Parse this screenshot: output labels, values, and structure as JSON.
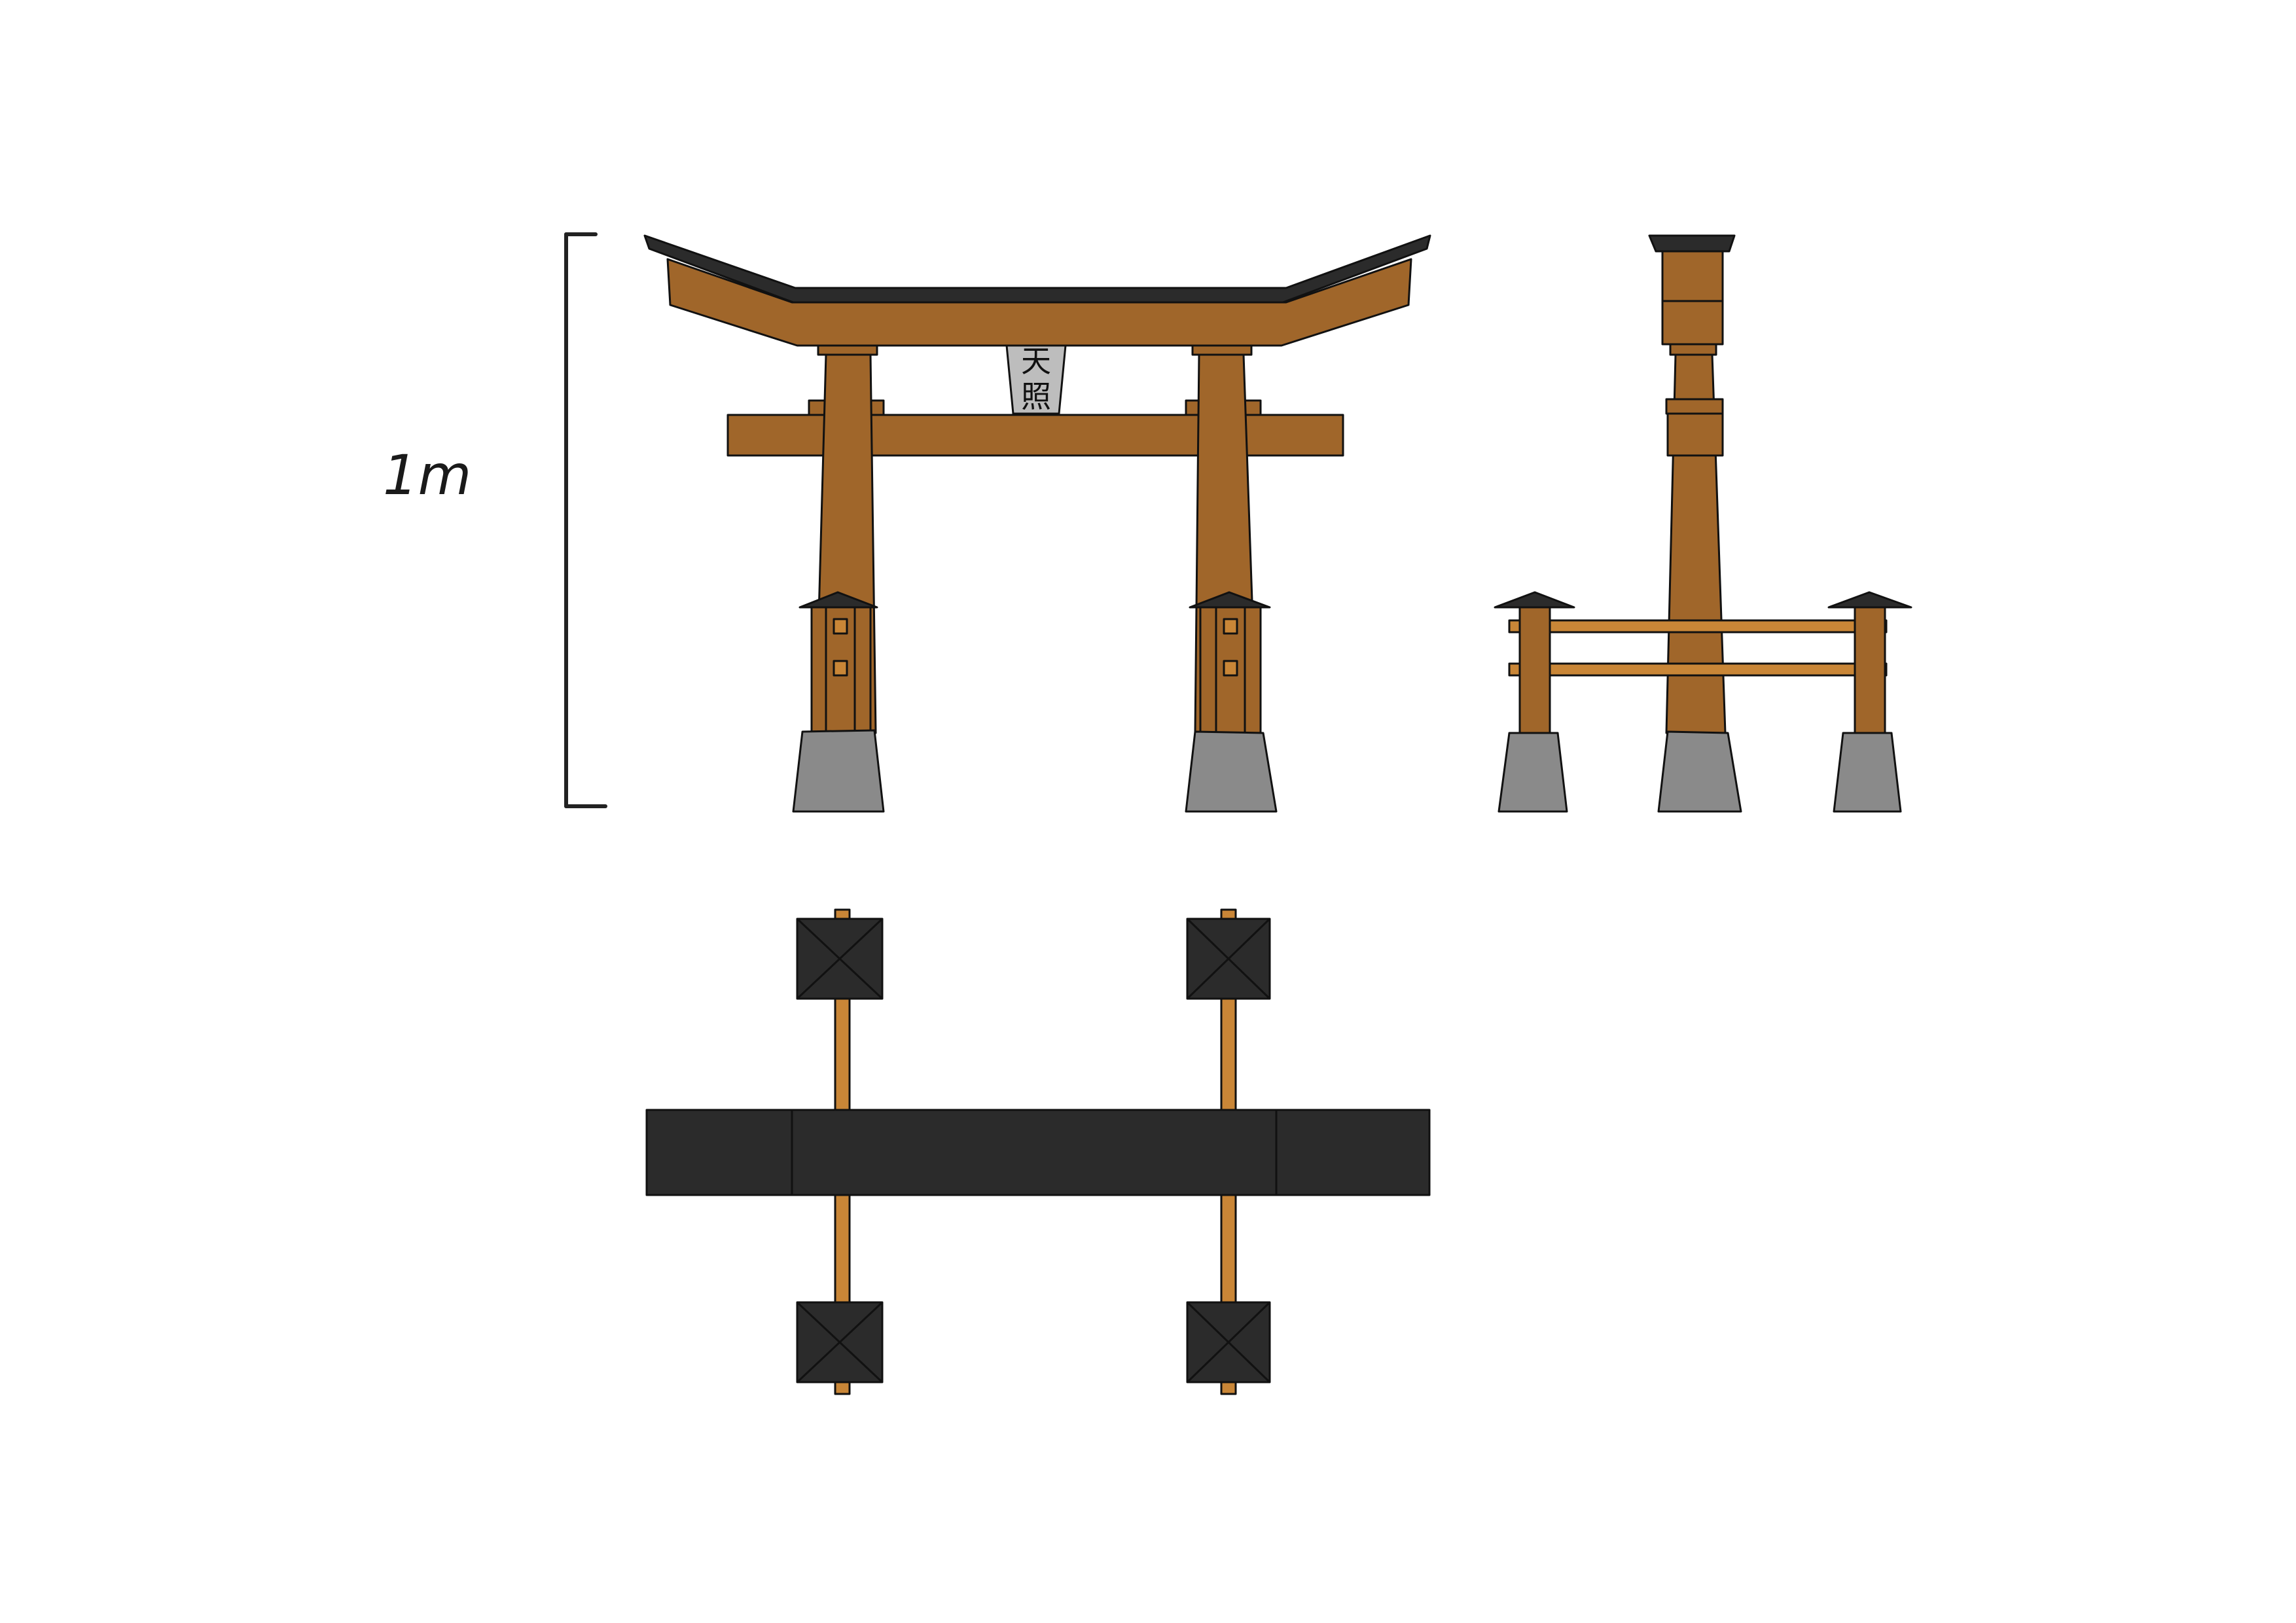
{
  "scale_bar": {
    "label": "1m"
  },
  "plaque": {
    "characters": [
      "天",
      "照"
    ]
  },
  "colors": {
    "wood": "#a0662a",
    "wood_light": "#c98637",
    "roof": "#2b2b2b",
    "stone": "#8a8a8a",
    "plaque": "#bdbdbd",
    "ink": "#111111"
  }
}
